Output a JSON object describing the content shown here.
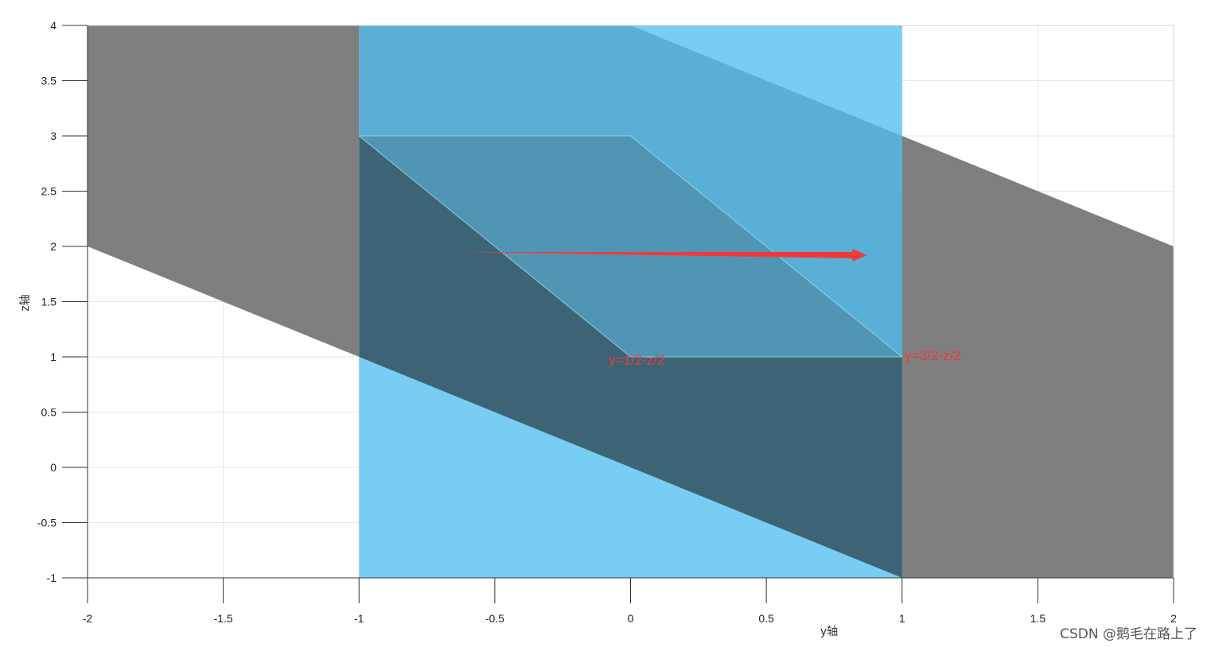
{
  "chart_data": {
    "type": "area",
    "xlabel": "y轴",
    "ylabel": "z轴",
    "xlim": [
      -2,
      2
    ],
    "ylim": [
      -1,
      4
    ],
    "xticks": [
      -2,
      -1.5,
      -1,
      -0.5,
      0,
      0.5,
      1,
      1.5,
      2
    ],
    "xtick_labels": [
      "-2",
      "-1.5",
      "-1",
      "-0.5",
      "0",
      "0.5",
      "1",
      "1.5",
      "2"
    ],
    "yticks": [
      -1,
      -0.5,
      0,
      0.5,
      1,
      1.5,
      2,
      2.5,
      3,
      3.5,
      4
    ],
    "ytick_labels": [
      "-1",
      "-0.5",
      "0",
      "0.5",
      "1",
      "1.5",
      "2",
      "2.5",
      "3",
      "3.5",
      "4"
    ],
    "grid": true,
    "regions": [
      {
        "name": "",
        "color": "#7f7f7f",
        "points": [
          [
            -2,
            4
          ],
          [
            -1,
            4
          ],
          [
            -1,
            3
          ],
          [
            1,
            -1
          ],
          [
            2,
            -1
          ],
          [
            2,
            2
          ],
          [
            -2,
            4
          ]
        ]
      },
      {
        "name": "",
        "color": "#7f7f7f",
        "points": [
          [
            -2,
            4
          ],
          [
            -1,
            4
          ],
          [
            -1,
            1
          ],
          [
            -2,
            2
          ]
        ]
      },
      {
        "name": "",
        "color": "#7f7f7f",
        "points": [
          [
            1,
            3
          ],
          [
            2,
            2
          ],
          [
            2,
            -1
          ],
          [
            1,
            -1
          ]
        ]
      },
      {
        "name": "",
        "color": "#78cdf2",
        "points": [
          [
            -1,
            4
          ],
          [
            1,
            4
          ],
          [
            1,
            -1
          ],
          [
            -1,
            -1
          ]
        ]
      },
      {
        "name": "",
        "color": "#5aafd6",
        "points": [
          [
            -1,
            4
          ],
          [
            0,
            4
          ],
          [
            1,
            3
          ],
          [
            1,
            1
          ],
          [
            0,
            1
          ],
          [
            -1,
            3
          ]
        ]
      },
      {
        "name": "",
        "color": "#3d6475",
        "points": [
          [
            -1,
            3
          ],
          [
            0,
            1
          ],
          [
            1,
            1
          ],
          [
            1,
            -1
          ],
          [
            -1,
            1
          ]
        ]
      },
      {
        "name": "",
        "color": "#5096b4",
        "points": [
          [
            -1,
            3
          ],
          [
            0,
            3
          ],
          [
            1,
            1
          ],
          [
            0,
            1
          ]
        ]
      }
    ],
    "arrow": {
      "color": "#f0393c",
      "from": [
        -0.63,
        1.95
      ],
      "to": [
        0.87,
        1.92
      ]
    },
    "annotations": [
      {
        "text": "y=1/2-z/2",
        "x": -0.08,
        "y": 0.93,
        "color": "#f0393c"
      },
      {
        "text": "y=3/2-z/2",
        "x": 1.01,
        "y": 0.97,
        "color": "#f0393c"
      }
    ]
  },
  "watermark": "CSDN @鹅毛在路上了"
}
